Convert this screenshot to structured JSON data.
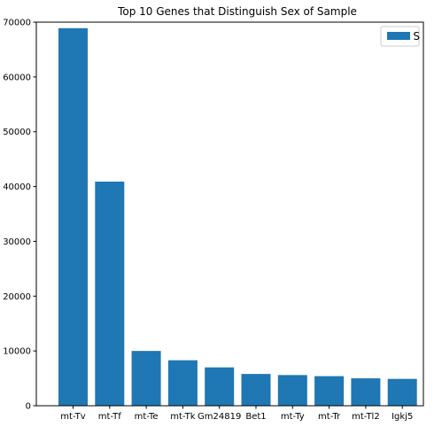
{
  "chart_data": {
    "type": "bar",
    "title": "Top 10 Genes that Distinguish Sex of Sample",
    "categories": [
      "mt-Tv",
      "mt-Tf",
      "mt-Te",
      "mt-Tk",
      "Gm24819",
      "Bet1",
      "mt-Ty",
      "mt-Tr",
      "mt-Tl2",
      "Igkj5"
    ],
    "series": [
      {
        "name": "S",
        "values": [
          68900,
          40900,
          10000,
          8300,
          7000,
          5800,
          5600,
          5400,
          5000,
          4900
        ],
        "color": "#1f77b4"
      }
    ],
    "xlabel": "",
    "ylabel": "",
    "ylim": [
      0,
      70000
    ],
    "yticks": [
      0,
      10000,
      20000,
      30000,
      40000,
      50000,
      60000,
      70000
    ],
    "legend_position": "top-right",
    "grid": false
  }
}
